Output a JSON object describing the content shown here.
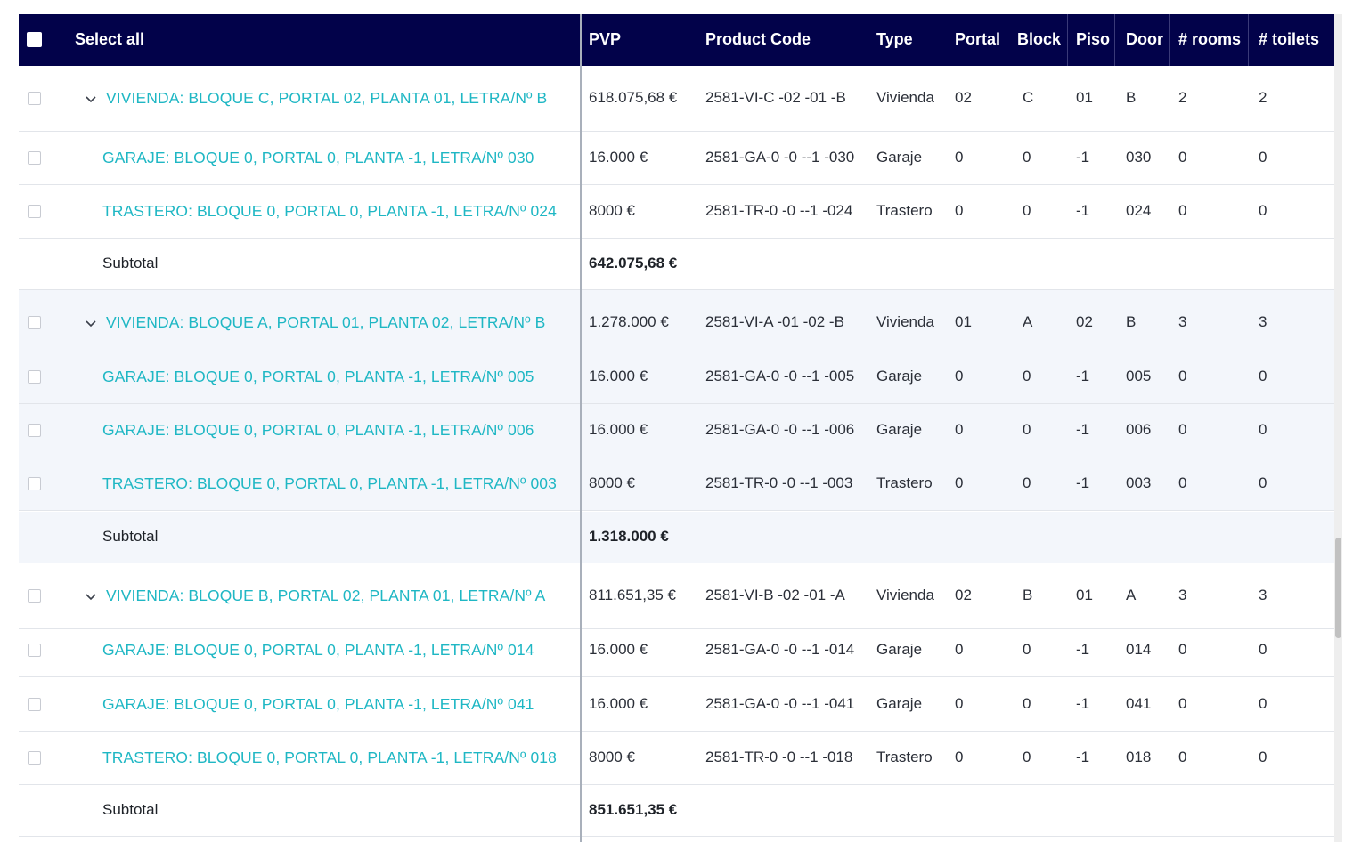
{
  "header": {
    "select_all": "Select all",
    "columns": [
      "PVP",
      "Product Code",
      "Type",
      "Portal",
      "Block",
      "Piso",
      "Door",
      "# rooms",
      "# toilets"
    ]
  },
  "rows": [
    {
      "kind": "parent",
      "alt": false,
      "name": "VIVIENDA: BLOQUE C, PORTAL 02, PLANTA 01, LETRA/Nº B",
      "pvp": "618.075,68 €",
      "code": "2581-VI-C -02 -01 -B",
      "type": "Vivienda",
      "portal": "02",
      "block": "C",
      "piso": "01",
      "door": "B",
      "rooms": "2",
      "toilets": "2"
    },
    {
      "kind": "child",
      "alt": false,
      "name": "GARAJE: BLOQUE 0, PORTAL 0, PLANTA -1, LETRA/Nº 030",
      "pvp": "16.000 €",
      "code": "2581-GA-0 -0 --1 -030",
      "type": "Garaje",
      "portal": "0",
      "block": "0",
      "piso": "-1",
      "door": "030",
      "rooms": "0",
      "toilets": "0"
    },
    {
      "kind": "child",
      "alt": false,
      "name": "TRASTERO: BLOQUE 0, PORTAL 0, PLANTA -1, LETRA/Nº 024",
      "pvp": "8000 €",
      "code": "2581-TR-0 -0 --1 -024",
      "type": "Trastero",
      "portal": "0",
      "block": "0",
      "piso": "-1",
      "door": "024",
      "rooms": "0",
      "toilets": "0"
    },
    {
      "kind": "subtotal",
      "alt": false,
      "label": "Subtotal",
      "value": "642.075,68 €"
    },
    {
      "kind": "parent",
      "alt": true,
      "name": "VIVIENDA: BLOQUE A, PORTAL 01, PLANTA 02, LETRA/Nº B",
      "pvp": "1.278.000 €",
      "code": "2581-VI-A -01 -02 -B",
      "type": "Vivienda",
      "portal": "01",
      "block": "A",
      "piso": "02",
      "door": "B",
      "rooms": "3",
      "toilets": "3"
    },
    {
      "kind": "child",
      "alt": true,
      "name": "GARAJE: BLOQUE 0, PORTAL 0, PLANTA -1, LETRA/Nº 005",
      "pvp": "16.000 €",
      "code": "2581-GA-0 -0 --1 -005",
      "type": "Garaje",
      "portal": "0",
      "block": "0",
      "piso": "-1",
      "door": "005",
      "rooms": "0",
      "toilets": "0"
    },
    {
      "kind": "child",
      "alt": true,
      "name": "GARAJE: BLOQUE 0, PORTAL 0, PLANTA -1, LETRA/Nº 006",
      "pvp": "16.000 €",
      "code": "2581-GA-0 -0 --1 -006",
      "type": "Garaje",
      "portal": "0",
      "block": "0",
      "piso": "-1",
      "door": "006",
      "rooms": "0",
      "toilets": "0"
    },
    {
      "kind": "child",
      "alt": true,
      "name": "TRASTERO: BLOQUE 0, PORTAL 0, PLANTA -1, LETRA/Nº 003",
      "pvp": "8000 €",
      "code": "2581-TR-0 -0 --1 -003",
      "type": "Trastero",
      "portal": "0",
      "block": "0",
      "piso": "-1",
      "door": "003",
      "rooms": "0",
      "toilets": "0"
    },
    {
      "kind": "subtotal",
      "alt": true,
      "label": "Subtotal",
      "value": "1.318.000 €"
    },
    {
      "kind": "parent",
      "alt": false,
      "name": "VIVIENDA: BLOQUE B, PORTAL 02, PLANTA 01, LETRA/Nº A",
      "pvp": "811.651,35 €",
      "code": "2581-VI-B -02 -01 -A",
      "type": "Vivienda",
      "portal": "02",
      "block": "B",
      "piso": "01",
      "door": "A",
      "rooms": "3",
      "toilets": "3"
    },
    {
      "kind": "child",
      "alt": false,
      "name": "GARAJE: BLOQUE 0, PORTAL 0, PLANTA -1, LETRA/Nº 014",
      "pvp": "16.000 €",
      "code": "2581-GA-0 -0 --1 -014",
      "type": "Garaje",
      "portal": "0",
      "block": "0",
      "piso": "-1",
      "door": "014",
      "rooms": "0",
      "toilets": "0"
    },
    {
      "kind": "child",
      "alt": false,
      "name": "GARAJE: BLOQUE 0, PORTAL 0, PLANTA -1, LETRA/Nº 041",
      "pvp": "16.000 €",
      "code": "2581-GA-0 -0 --1 -041",
      "type": "Garaje",
      "portal": "0",
      "block": "0",
      "piso": "-1",
      "door": "041",
      "rooms": "0",
      "toilets": "0"
    },
    {
      "kind": "child",
      "alt": false,
      "name": "TRASTERO: BLOQUE 0, PORTAL 0, PLANTA -1, LETRA/Nº 018",
      "pvp": "8000 €",
      "code": "2581-TR-0 -0 --1 -018",
      "type": "Trastero",
      "portal": "0",
      "block": "0",
      "piso": "-1",
      "door": "018",
      "rooms": "0",
      "toilets": "0"
    },
    {
      "kind": "subtotal",
      "alt": false,
      "label": "Subtotal",
      "value": "851.651,35 €"
    }
  ],
  "colors": {
    "header_bg": "#02024a",
    "name_link": "#1fb7c4",
    "alt_row": "#f3f6fb"
  }
}
